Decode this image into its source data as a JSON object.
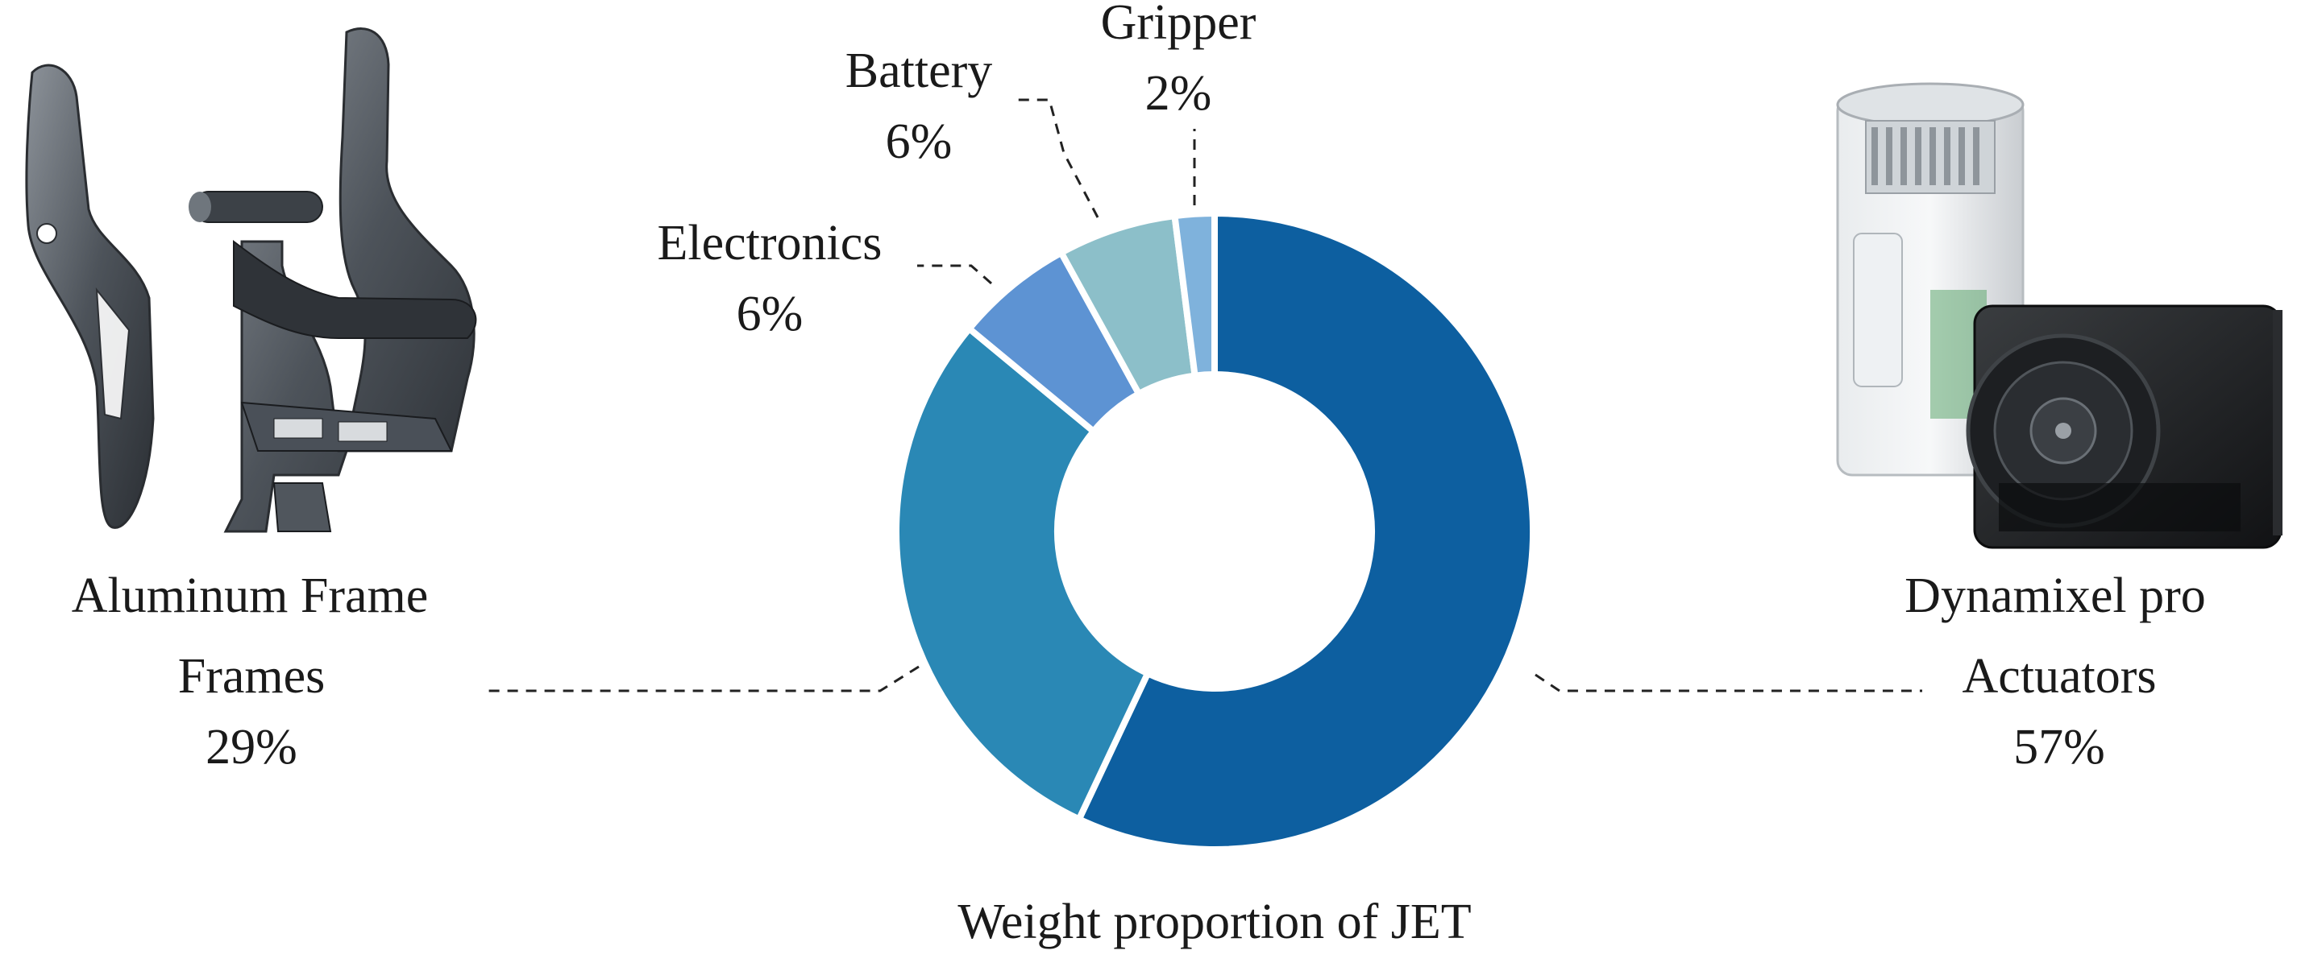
{
  "chart_data": {
    "type": "pie",
    "variant": "donut",
    "title": "Weight proportion of JET",
    "categories": [
      "Actuators",
      "Frames",
      "Electronics",
      "Battery",
      "Gripper"
    ],
    "values": [
      57,
      29,
      6,
      6,
      2
    ],
    "value_labels": [
      "57%",
      "29%",
      "6%",
      "6%",
      "2%"
    ],
    "colors": [
      "#0d5fa0",
      "#2a88b5",
      "#5d93d3",
      "#8cbfc9",
      "#7fb2dc"
    ],
    "start_angle_deg": 0,
    "direction": "clockwise",
    "legend": "none"
  },
  "images": {
    "left": {
      "caption": "Aluminum Frame",
      "icon": "aluminum-frame-illustration"
    },
    "right": {
      "caption": "Dynamixel pro",
      "icon": "servo-actuator-illustration"
    }
  }
}
